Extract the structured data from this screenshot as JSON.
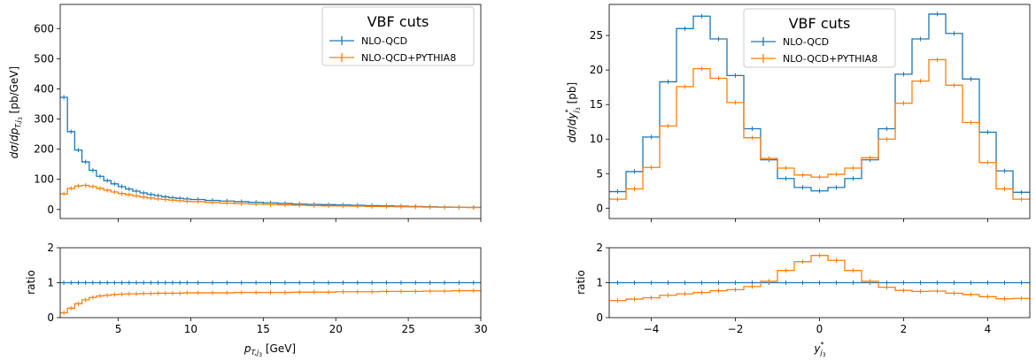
{
  "colors": {
    "nlo": "#1f77b4",
    "pythia": "#ff7f0e"
  },
  "legend": {
    "title": "VBF cuts",
    "entries": [
      "NLO-QCD",
      "NLO-QCD+PYTHIA8"
    ]
  },
  "left": {
    "ylabel_main": "dσ/dp_T,j3 [pb/GeV]",
    "ylabel_ratio": "ratio",
    "xlabel": "p_T,j3 [GeV]"
  },
  "right": {
    "ylabel_main": "dσ/dy*_j3 [pb]",
    "ylabel_ratio": "ratio",
    "xlabel": "y*_j3"
  },
  "chart_data": [
    {
      "type": "line",
      "panel": "left-main",
      "drawstyle": "steps",
      "xlim": [
        1,
        30
      ],
      "ylim": [
        -30,
        680
      ],
      "xticks": [
        5,
        10,
        15,
        20,
        25,
        30
      ],
      "yticks": [
        0,
        100,
        200,
        300,
        400,
        500,
        600
      ],
      "ytick_labels": [
        "0",
        "100",
        "200",
        "300",
        "400",
        "500",
        "600"
      ],
      "xlabel": "",
      "ylabel": "dσ/dp_T,j3 [pb/GeV]",
      "legend_position": "top-right",
      "bin_edges": [
        1,
        1.5,
        2,
        2.5,
        3,
        3.5,
        4,
        4.5,
        5,
        5.5,
        6,
        6.5,
        7,
        7.5,
        8,
        8.5,
        9,
        9.5,
        10,
        11,
        12,
        13,
        14,
        15,
        16,
        17,
        18,
        19,
        20,
        21,
        22,
        23,
        24,
        25,
        26,
        27,
        28,
        29,
        30
      ],
      "series": [
        {
          "name": "NLO-QCD",
          "values": [
            372,
            258,
            197,
            158,
            130,
            110,
            96,
            85,
            76,
            68,
            61,
            55,
            50,
            46,
            42,
            39,
            37,
            35,
            33,
            30,
            28,
            26,
            24,
            22,
            20,
            18,
            17,
            16,
            15,
            14,
            13,
            12,
            11,
            10,
            9,
            8,
            7.5,
            7
          ]
        },
        {
          "name": "NLO-QCD+PYTHIA8",
          "values": [
            52,
            70,
            78,
            80,
            76,
            70,
            64,
            58,
            53,
            49,
            45,
            41,
            38,
            35,
            33,
            31,
            29,
            27,
            26,
            23,
            21,
            19.5,
            18,
            16.5,
            15,
            14,
            13,
            12,
            11.5,
            11,
            10,
            9.5,
            9,
            8.5,
            8,
            7.5,
            7,
            6.5
          ]
        }
      ]
    },
    {
      "type": "line",
      "panel": "left-ratio",
      "drawstyle": "steps",
      "xlim": [
        1,
        30
      ],
      "ylim": [
        0,
        2
      ],
      "xticks": [
        5,
        10,
        15,
        20,
        25,
        30
      ],
      "xtick_labels": [
        "5",
        "10",
        "15",
        "20",
        "25",
        "30"
      ],
      "yticks": [
        0,
        1,
        2
      ],
      "ytick_labels": [
        "0",
        "1",
        "2"
      ],
      "xlabel": "p_T,j3 [GeV]",
      "ylabel": "ratio",
      "bin_edges": [
        1,
        1.5,
        2,
        2.5,
        3,
        3.5,
        4,
        4.5,
        5,
        5.5,
        6,
        6.5,
        7,
        7.5,
        8,
        8.5,
        9,
        9.5,
        10,
        11,
        12,
        13,
        14,
        15,
        16,
        17,
        18,
        19,
        20,
        21,
        22,
        23,
        24,
        25,
        26,
        27,
        28,
        29,
        30
      ],
      "series": [
        {
          "name": "NLO-QCD",
          "values": [
            1,
            1,
            1,
            1,
            1,
            1,
            1,
            1,
            1,
            1,
            1,
            1,
            1,
            1,
            1,
            1,
            1,
            1,
            1,
            1,
            1,
            1,
            1,
            1,
            1,
            1,
            1,
            1,
            1,
            1,
            1,
            1,
            1,
            1,
            1,
            1,
            1,
            1
          ]
        },
        {
          "name": "NLO-QCD+PYTHIA8",
          "values": [
            0.14,
            0.27,
            0.4,
            0.51,
            0.58,
            0.62,
            0.64,
            0.66,
            0.67,
            0.68,
            0.68,
            0.69,
            0.69,
            0.7,
            0.7,
            0.7,
            0.7,
            0.71,
            0.71,
            0.71,
            0.71,
            0.72,
            0.72,
            0.72,
            0.72,
            0.73,
            0.73,
            0.73,
            0.74,
            0.74,
            0.74,
            0.75,
            0.75,
            0.75,
            0.76,
            0.76,
            0.77,
            0.77
          ]
        }
      ]
    },
    {
      "type": "line",
      "panel": "right-main",
      "drawstyle": "steps",
      "xlim": [
        -5,
        5
      ],
      "ylim": [
        -1.5,
        29.5
      ],
      "xticks": [
        -4,
        -2,
        0,
        2,
        4
      ],
      "yticks": [
        0,
        5,
        10,
        15,
        20,
        25
      ],
      "ytick_labels": [
        "0",
        "5",
        "10",
        "15",
        "20",
        "25"
      ],
      "xlabel": "",
      "ylabel": "dσ/dy*_j3 [pb]",
      "legend_position": "top-center",
      "bin_edges": [
        -5,
        -4.6,
        -4.2,
        -3.8,
        -3.4,
        -3,
        -2.6,
        -2.2,
        -1.8,
        -1.4,
        -1,
        -0.6,
        -0.2,
        0.2,
        0.6,
        1,
        1.4,
        1.8,
        2.2,
        2.6,
        3,
        3.4,
        3.8,
        4.2,
        4.6,
        5
      ],
      "series": [
        {
          "name": "NLO-QCD",
          "values": [
            2.4,
            5.3,
            10.3,
            18.3,
            26.0,
            27.8,
            24.5,
            19.2,
            11.5,
            7.0,
            4.3,
            3.0,
            2.5,
            3.0,
            4.3,
            7.0,
            11.5,
            19.4,
            24.5,
            28.1,
            25.3,
            18.7,
            11.0,
            5.4,
            2.3
          ]
        },
        {
          "name": "NLO-QCD+PYTHIA8",
          "values": [
            1.3,
            2.8,
            5.9,
            11.9,
            17.6,
            20.2,
            18.8,
            15.3,
            10.2,
            7.2,
            5.8,
            4.8,
            4.5,
            4.9,
            5.8,
            7.3,
            10.0,
            15.2,
            18.4,
            21.5,
            17.8,
            12.4,
            6.6,
            2.8,
            1.3
          ]
        }
      ]
    },
    {
      "type": "line",
      "panel": "right-ratio",
      "drawstyle": "steps",
      "xlim": [
        -5,
        5
      ],
      "ylim": [
        0,
        2
      ],
      "xticks": [
        -4,
        -2,
        0,
        2,
        4
      ],
      "xtick_labels": [
        "−4",
        "−2",
        "0",
        "2",
        "4"
      ],
      "yticks": [
        0,
        1,
        2
      ],
      "ytick_labels": [
        "0",
        "1",
        "2"
      ],
      "xlabel": "y*_j3",
      "ylabel": "ratio",
      "bin_edges": [
        -5,
        -4.6,
        -4.2,
        -3.8,
        -3.4,
        -3,
        -2.6,
        -2.2,
        -1.8,
        -1.4,
        -1,
        -0.6,
        -0.2,
        0.2,
        0.6,
        1,
        1.4,
        1.8,
        2.2,
        2.6,
        3,
        3.4,
        3.8,
        4.2,
        4.6,
        5
      ],
      "series": [
        {
          "name": "NLO-QCD",
          "values": [
            1,
            1,
            1,
            1,
            1,
            1,
            1,
            1,
            1,
            1,
            1,
            1,
            1,
            1,
            1,
            1,
            1,
            1,
            1,
            1,
            1,
            1,
            1,
            1,
            1
          ]
        },
        {
          "name": "NLO-QCD+PYTHIA8",
          "values": [
            0.49,
            0.53,
            0.57,
            0.64,
            0.68,
            0.72,
            0.77,
            0.8,
            0.89,
            1.04,
            1.35,
            1.6,
            1.78,
            1.64,
            1.35,
            1.04,
            0.87,
            0.78,
            0.75,
            0.76,
            0.7,
            0.66,
            0.6,
            0.54,
            0.55
          ]
        }
      ]
    }
  ]
}
